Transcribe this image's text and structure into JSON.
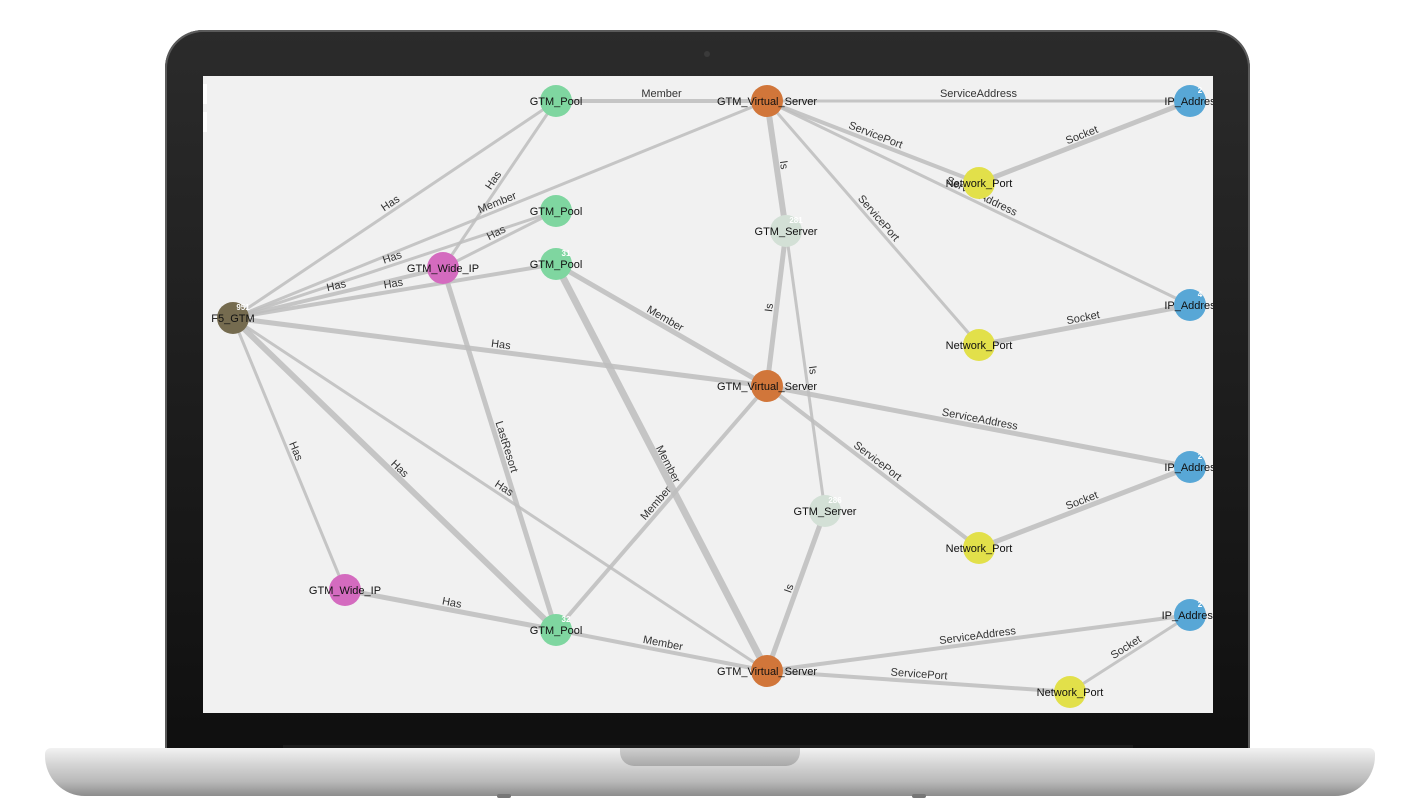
{
  "graph": {
    "nodes": [
      {
        "id": "f5",
        "label": "F5_GTM",
        "count": "951",
        "color": "#756b4f",
        "type": "F5_GTM"
      },
      {
        "id": "pool1",
        "label": "GTM_Pool",
        "count": "",
        "color": "#7fd6a0",
        "type": "GTM_Pool"
      },
      {
        "id": "pool2",
        "label": "GTM_Pool",
        "count": "",
        "color": "#7fd6a0",
        "type": "GTM_Pool"
      },
      {
        "id": "pool3",
        "label": "GTM_Pool",
        "count": "31",
        "color": "#7fd6a0",
        "type": "GTM_Pool"
      },
      {
        "id": "pool4",
        "label": "GTM_Pool",
        "count": "32",
        "color": "#7fd6a0",
        "type": "GTM_Pool"
      },
      {
        "id": "wide1",
        "label": "GTM_Wide_IP",
        "count": "",
        "color": "#d46bbf",
        "type": "GTM_Wide_IP"
      },
      {
        "id": "wide2",
        "label": "GTM_Wide_IP",
        "count": "",
        "color": "#d46bbf",
        "type": "GTM_Wide_IP"
      },
      {
        "id": "vs1",
        "label": "GTM_Virtual_Server",
        "count": "",
        "color": "#d1763a",
        "type": "GTM_Virtual_Server"
      },
      {
        "id": "vs2",
        "label": "GTM_Virtual_Server",
        "count": "",
        "color": "#d1763a",
        "type": "GTM_Virtual_Server"
      },
      {
        "id": "vs3",
        "label": "GTM_Virtual_Server",
        "count": "",
        "color": "#d1763a",
        "type": "GTM_Virtual_Server"
      },
      {
        "id": "srv1",
        "label": "GTM_Server",
        "count": "281",
        "color": "#d3e0d6",
        "type": "GTM_Server"
      },
      {
        "id": "srv2",
        "label": "GTM_Server",
        "count": "286",
        "color": "#d3e0d6",
        "type": "GTM_Server"
      },
      {
        "id": "np1",
        "label": "Network_Port",
        "count": "",
        "color": "#e2e04a",
        "type": "Network_Port"
      },
      {
        "id": "np2",
        "label": "Network_Port",
        "count": "",
        "color": "#e2e04a",
        "type": "Network_Port"
      },
      {
        "id": "np3",
        "label": "Network_Port",
        "count": "",
        "color": "#e2e04a",
        "type": "Network_Port"
      },
      {
        "id": "np4",
        "label": "Network_Port",
        "count": "",
        "color": "#e2e04a",
        "type": "Network_Port"
      },
      {
        "id": "ip1",
        "label": "IP_Addres",
        "count": "2",
        "color": "#58a7d6",
        "type": "IP_Address"
      },
      {
        "id": "ip2",
        "label": "IP_Addres",
        "count": "4",
        "color": "#58a7d6",
        "type": "IP_Address"
      },
      {
        "id": "ip3",
        "label": "IP_Addres",
        "count": "2",
        "color": "#58a7d6",
        "type": "IP_Address"
      },
      {
        "id": "ip4",
        "label": "IP_Address",
        "count": "2",
        "color": "#58a7d6",
        "type": "IP_Address"
      }
    ],
    "edges": [
      {
        "from": "f5",
        "to": "pool1",
        "label": "Has",
        "weight": 3
      },
      {
        "from": "f5",
        "to": "pool2",
        "label": "Has",
        "weight": 3
      },
      {
        "from": "f5",
        "to": "pool3",
        "label": "Has",
        "weight": 4
      },
      {
        "from": "f5",
        "to": "wide1",
        "label": "Has",
        "weight": 4
      },
      {
        "from": "f5",
        "to": "vs2",
        "label": "Has",
        "weight": 5
      },
      {
        "from": "f5",
        "to": "wide2",
        "label": "Has",
        "weight": 3
      },
      {
        "from": "f5",
        "to": "pool4",
        "label": "Has",
        "weight": 6
      },
      {
        "from": "f5",
        "to": "vs3",
        "label": "Has",
        "weight": 3
      },
      {
        "from": "f5",
        "to": "vs1",
        "label": "Member",
        "weight": 3
      },
      {
        "from": "wide1",
        "to": "pool1",
        "label": "Has",
        "weight": 3
      },
      {
        "from": "wide1",
        "to": "pool2",
        "label": "Has",
        "weight": 3
      },
      {
        "from": "wide1",
        "to": "pool4",
        "label": "LastResort",
        "weight": 5
      },
      {
        "from": "wide2",
        "to": "pool4",
        "label": "Has",
        "weight": 5
      },
      {
        "from": "pool1",
        "to": "vs1",
        "label": "Member",
        "weight": 4
      },
      {
        "from": "pool3",
        "to": "vs2",
        "label": "Member",
        "weight": 5
      },
      {
        "from": "pool3",
        "to": "vs3",
        "label": "Member",
        "weight": 7
      },
      {
        "from": "pool4",
        "to": "vs2",
        "label": "Member",
        "weight": 4
      },
      {
        "from": "pool4",
        "to": "vs3",
        "label": "Member",
        "weight": 4
      },
      {
        "from": "vs1",
        "to": "ip1",
        "label": "ServiceAddress",
        "weight": 3
      },
      {
        "from": "vs1",
        "to": "np1",
        "label": "ServicePort",
        "weight": 4
      },
      {
        "from": "vs1",
        "to": "np2",
        "label": "ServicePort",
        "weight": 3
      },
      {
        "from": "vs1",
        "to": "ip2",
        "label": "ServiceAddress",
        "weight": 3
      },
      {
        "from": "vs1",
        "to": "srv1",
        "label": "Is",
        "weight": 6
      },
      {
        "from": "np1",
        "to": "ip1",
        "label": "Socket",
        "weight": 5
      },
      {
        "from": "np2",
        "to": "ip2",
        "label": "Socket",
        "weight": 5
      },
      {
        "from": "srv1",
        "to": "vs2",
        "label": "Is",
        "weight": 5
      },
      {
        "from": "srv1",
        "to": "srv2",
        "label": "Is",
        "weight": 3
      },
      {
        "from": "vs2",
        "to": "ip3",
        "label": "ServiceAddress",
        "weight": 5
      },
      {
        "from": "vs2",
        "to": "np3",
        "label": "ServicePort",
        "weight": 4
      },
      {
        "from": "np3",
        "to": "ip3",
        "label": "Socket",
        "weight": 5
      },
      {
        "from": "srv2",
        "to": "vs3",
        "label": "Is",
        "weight": 5
      },
      {
        "from": "vs3",
        "to": "ip4",
        "label": "ServiceAddress",
        "weight": 4
      },
      {
        "from": "vs3",
        "to": "np4",
        "label": "ServicePort",
        "weight": 4
      },
      {
        "from": "np4",
        "to": "ip4",
        "label": "Socket",
        "weight": 3
      }
    ]
  }
}
